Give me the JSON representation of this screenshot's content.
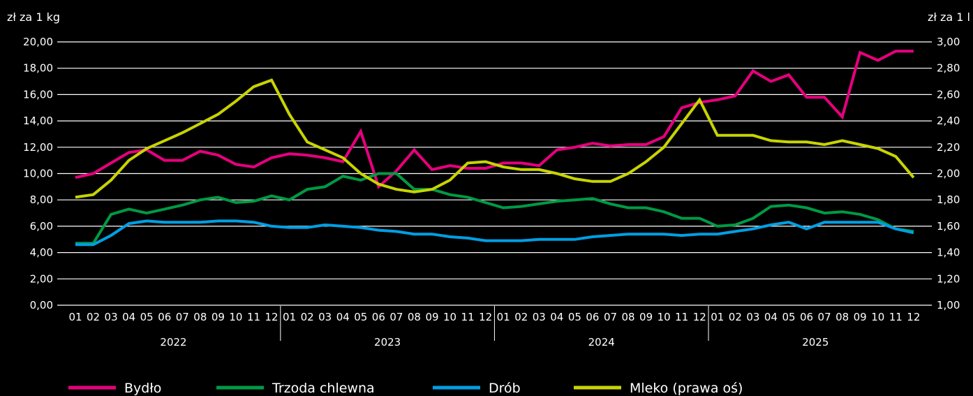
{
  "chart_data": {
    "type": "line",
    "left_axis_label": "zł za 1 kg",
    "right_axis_label": "zł za 1 l",
    "left_ylim": [
      0,
      20
    ],
    "right_ylim": [
      1.0,
      3.0
    ],
    "left_ticks": [
      "0,00",
      "2,00",
      "4,00",
      "6,00",
      "8,00",
      "10,00",
      "12,00",
      "14,00",
      "16,00",
      "18,00",
      "20,00"
    ],
    "right_ticks": [
      "1,00",
      "1,20",
      "1,40",
      "1,60",
      "1,80",
      "2,00",
      "2,20",
      "2,40",
      "2,60",
      "2,80",
      "3,00"
    ],
    "grid": true,
    "legend_position": "bottom",
    "years": [
      "2022",
      "2023",
      "2024",
      "2025"
    ],
    "months": [
      "01",
      "02",
      "03",
      "04",
      "05",
      "06",
      "07",
      "08",
      "09",
      "10",
      "11",
      "12"
    ],
    "series": [
      {
        "name": "Bydło",
        "axis": "left",
        "color": "#e6007e",
        "values": [
          9.7,
          10.0,
          10.8,
          11.6,
          11.8,
          11.0,
          11.0,
          11.7,
          11.4,
          10.7,
          10.5,
          11.2,
          11.5,
          11.4,
          11.2,
          10.9,
          13.2,
          9.0,
          10.2,
          11.8,
          10.3,
          10.6,
          10.4,
          10.4,
          10.8,
          10.8,
          10.6,
          11.8,
          12.0,
          12.3,
          12.1,
          12.2,
          12.2,
          12.8,
          15.0,
          15.4,
          15.6,
          15.9,
          17.8,
          17.0,
          17.5,
          15.8,
          15.8,
          14.3,
          19.2,
          18.6,
          19.3,
          19.3
        ]
      },
      {
        "name": "Trzoda chlewna",
        "axis": "left",
        "color": "#009a44",
        "values": [
          4.7,
          4.7,
          6.9,
          7.3,
          7.0,
          7.3,
          7.6,
          8.0,
          8.2,
          7.8,
          7.9,
          8.3,
          8.0,
          8.8,
          9.0,
          9.8,
          9.5,
          10.0,
          10.0,
          8.8,
          8.8,
          8.4,
          8.2,
          7.8,
          7.4,
          7.5,
          7.7,
          7.9,
          8.0,
          8.1,
          7.7,
          7.4,
          7.4,
          7.1,
          6.6,
          6.6,
          6.0,
          6.1,
          6.6,
          7.5,
          7.6,
          7.4,
          7.0,
          7.1,
          6.9,
          6.5,
          5.8,
          5.6
        ]
      },
      {
        "name": "Drób",
        "axis": "left",
        "color": "#009fe3",
        "values": [
          4.6,
          4.6,
          5.3,
          6.2,
          6.4,
          6.3,
          6.3,
          6.3,
          6.4,
          6.4,
          6.3,
          6.0,
          5.9,
          5.9,
          6.1,
          6.0,
          5.9,
          5.7,
          5.6,
          5.4,
          5.4,
          5.2,
          5.1,
          4.9,
          4.9,
          4.9,
          5.0,
          5.0,
          5.0,
          5.2,
          5.3,
          5.4,
          5.4,
          5.4,
          5.3,
          5.4,
          5.4,
          5.6,
          5.8,
          6.1,
          6.3,
          5.8,
          6.3,
          6.3,
          6.3,
          6.3,
          5.8,
          5.5
        ]
      },
      {
        "name": "Mleko (prawa oś)",
        "axis": "right",
        "color": "#c8d400",
        "values": [
          1.82,
          1.84,
          1.95,
          2.1,
          2.19,
          2.25,
          2.31,
          2.38,
          2.45,
          2.55,
          2.66,
          2.71,
          2.45,
          2.24,
          2.18,
          2.12,
          2.0,
          1.92,
          1.88,
          1.86,
          1.88,
          1.95,
          2.08,
          2.09,
          2.05,
          2.03,
          2.03,
          2.0,
          1.96,
          1.94,
          1.94,
          2.0,
          2.09,
          2.2,
          2.38,
          2.56,
          2.29,
          2.29,
          2.29,
          2.25,
          2.24,
          2.24,
          2.22,
          2.25,
          2.22,
          2.19,
          2.13,
          1.97
        ]
      }
    ]
  }
}
